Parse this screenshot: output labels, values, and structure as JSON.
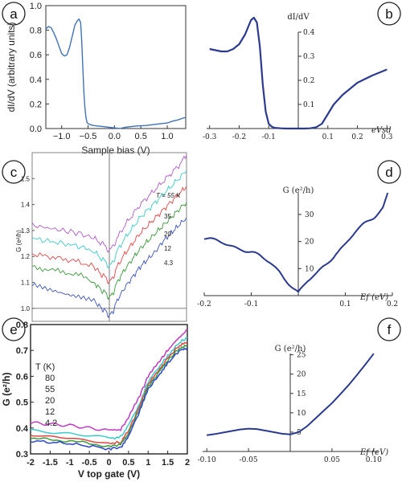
{
  "panels": {
    "a": {
      "label": "a"
    },
    "b": {
      "label": "b"
    },
    "c": {
      "label": "c"
    },
    "d": {
      "label": "d"
    },
    "e": {
      "label": "e"
    },
    "f": {
      "label": "f"
    }
  },
  "chart_data": [
    {
      "id": "a",
      "type": "line",
      "title": "",
      "xlabel": "Sample bias (V)",
      "ylabel": "dI/dV (arbitrary units)",
      "xlim": [
        -1.3,
        1.35
      ],
      "ylim": [
        0,
        1.0
      ],
      "xticks": [
        -1.0,
        -0.5,
        0.0,
        0.5,
        1.0
      ],
      "xtick_labels": [
        "−1.0",
        "−0.5",
        "0.0",
        "0.5",
        "1.0"
      ],
      "yticks": [
        0.0,
        0.2,
        0.4,
        0.6,
        0.8,
        1.0
      ],
      "ytick_labels": [
        "0.0",
        "0.2",
        "0.4",
        "0.6",
        "0.8",
        "1.0"
      ],
      "grid": false,
      "series": [
        {
          "color": "#3f73b6",
          "x": [
            -1.3,
            -1.25,
            -1.2,
            -1.15,
            -1.1,
            -1.05,
            -1.0,
            -0.95,
            -0.9,
            -0.85,
            -0.8,
            -0.75,
            -0.7,
            -0.67,
            -0.64,
            -0.62,
            -0.6,
            -0.58,
            -0.56,
            -0.54,
            -0.52,
            -0.5,
            -0.45,
            -0.4,
            -0.3,
            -0.2,
            -0.1,
            0.0,
            0.1,
            0.2,
            0.4,
            0.6,
            0.8,
            1.0,
            1.1,
            1.2,
            1.3,
            1.35
          ],
          "y": [
            0.81,
            0.83,
            0.82,
            0.78,
            0.73,
            0.67,
            0.61,
            0.59,
            0.6,
            0.66,
            0.75,
            0.84,
            0.88,
            0.89,
            0.86,
            0.72,
            0.5,
            0.3,
            0.17,
            0.09,
            0.05,
            0.04,
            0.03,
            0.025,
            0.02,
            0.015,
            0.01,
            0.005,
            0.0,
            0.01,
            0.02,
            0.025,
            0.035,
            0.045,
            0.06,
            0.07,
            0.085,
            0.09
          ]
        }
      ]
    },
    {
      "id": "b",
      "type": "line",
      "title": "",
      "xlabel": "eVsd",
      "ylabel": "dI/dV",
      "xlim": [
        -0.31,
        0.31
      ],
      "ylim": [
        0,
        0.5
      ],
      "xticks": [
        -0.3,
        -0.2,
        -0.1,
        0.1,
        0.2,
        0.3
      ],
      "xtick_labels": [
        "-0.3",
        "-0.2",
        "-0.1",
        "0.1",
        "0.2",
        "0.3"
      ],
      "yticks": [
        0.1,
        0.2,
        0.3,
        0.4
      ],
      "ytick_labels": [
        "0.1",
        "0.2",
        "0.3",
        "0.4"
      ],
      "grid": false,
      "series": [
        {
          "color": "#2b3a8f",
          "x": [
            -0.3,
            -0.28,
            -0.26,
            -0.24,
            -0.22,
            -0.2,
            -0.18,
            -0.16,
            -0.15,
            -0.14,
            -0.13,
            -0.12,
            -0.11,
            -0.1,
            -0.09,
            -0.08,
            -0.06,
            -0.04,
            -0.02,
            0.0,
            0.02,
            0.04,
            0.06,
            0.08,
            0.1,
            0.12,
            0.15,
            0.2,
            0.25,
            0.3
          ],
          "y": [
            0.33,
            0.325,
            0.32,
            0.32,
            0.33,
            0.35,
            0.39,
            0.45,
            0.46,
            0.44,
            0.34,
            0.18,
            0.07,
            0.02,
            0.008,
            0.003,
            0.001,
            0.0,
            0.0,
            0.0,
            0.0,
            0.001,
            0.005,
            0.02,
            0.06,
            0.1,
            0.14,
            0.19,
            0.22,
            0.245
          ]
        }
      ]
    },
    {
      "id": "c",
      "type": "line",
      "title": "",
      "xlabel": "",
      "ylabel": "G (e²/h)",
      "xlim": [
        -1.0,
        1.0
      ],
      "ylim": [
        0.95,
        1.6
      ],
      "yticks": [
        1.0,
        1.1,
        1.2,
        1.3,
        1.4,
        1.5
      ],
      "ytick_labels": [
        "1.0",
        "1.1",
        "1.2",
        "1.3",
        "1.4",
        "1.5"
      ],
      "grid": false,
      "legend_labels": [
        "T = 55 K",
        "35",
        "20",
        "12",
        "4.3"
      ],
      "series": [
        {
          "name": "55 K",
          "color": "#b05ac8",
          "x": [
            -1.0,
            -0.8,
            -0.6,
            -0.4,
            -0.2,
            -0.1,
            -0.05,
            0.0,
            0.05,
            0.1,
            0.2,
            0.3,
            0.4,
            0.5,
            0.6,
            0.7,
            0.8,
            0.9,
            1.0
          ],
          "y": [
            1.32,
            1.31,
            1.3,
            1.29,
            1.27,
            1.25,
            1.24,
            1.22,
            1.24,
            1.27,
            1.32,
            1.36,
            1.4,
            1.43,
            1.46,
            1.49,
            1.52,
            1.55,
            1.59
          ]
        },
        {
          "name": "35",
          "color": "#3ec9c9",
          "x": [
            -1.0,
            -0.8,
            -0.6,
            -0.4,
            -0.2,
            -0.1,
            -0.05,
            0.0,
            0.05,
            0.1,
            0.2,
            0.3,
            0.4,
            0.5,
            0.6,
            0.7,
            0.8,
            0.9,
            1.0
          ],
          "y": [
            1.27,
            1.26,
            1.25,
            1.24,
            1.22,
            1.19,
            1.18,
            1.16,
            1.18,
            1.22,
            1.27,
            1.31,
            1.35,
            1.38,
            1.41,
            1.44,
            1.47,
            1.5,
            1.53
          ]
        },
        {
          "name": "20",
          "color": "#e04646",
          "x": [
            -1.0,
            -0.8,
            -0.6,
            -0.4,
            -0.2,
            -0.1,
            -0.05,
            0.0,
            0.05,
            0.1,
            0.2,
            0.3,
            0.4,
            0.5,
            0.6,
            0.7,
            0.8,
            0.9,
            1.0
          ],
          "y": [
            1.21,
            1.2,
            1.19,
            1.18,
            1.16,
            1.13,
            1.12,
            1.1,
            1.12,
            1.16,
            1.21,
            1.25,
            1.29,
            1.32,
            1.35,
            1.38,
            1.41,
            1.44,
            1.47
          ]
        },
        {
          "name": "12",
          "color": "#3b9a3b",
          "x": [
            -1.0,
            -0.8,
            -0.6,
            -0.4,
            -0.2,
            -0.1,
            -0.05,
            0.0,
            0.05,
            0.1,
            0.2,
            0.3,
            0.4,
            0.5,
            0.6,
            0.7,
            0.8,
            0.9,
            1.0
          ],
          "y": [
            1.16,
            1.15,
            1.14,
            1.13,
            1.1,
            1.07,
            1.06,
            1.04,
            1.06,
            1.1,
            1.15,
            1.19,
            1.23,
            1.26,
            1.29,
            1.32,
            1.35,
            1.38,
            1.41
          ]
        },
        {
          "name": "4.3",
          "color": "#3d55b8",
          "x": [
            -1.0,
            -0.8,
            -0.6,
            -0.4,
            -0.2,
            -0.1,
            -0.05,
            0.0,
            0.05,
            0.1,
            0.2,
            0.3,
            0.4,
            0.5,
            0.6,
            0.7,
            0.8,
            0.9,
            1.0
          ],
          "y": [
            1.09,
            1.07,
            1.06,
            1.05,
            1.03,
            1.0,
            0.99,
            0.97,
            0.99,
            1.03,
            1.08,
            1.12,
            1.16,
            1.19,
            1.22,
            1.26,
            1.29,
            1.32,
            1.35
          ]
        }
      ]
    },
    {
      "id": "d",
      "type": "line",
      "title": "",
      "xlabel": "Ef (eV)",
      "ylabel": "G (e²/h)",
      "xlim": [
        -0.2,
        0.2
      ],
      "ylim": [
        0,
        38
      ],
      "xticks": [
        -0.2,
        -0.1,
        0.1,
        0.2
      ],
      "xtick_labels": [
        "-0.2",
        "-0.1",
        "0.1",
        "0.2"
      ],
      "yticks": [
        10,
        20,
        30
      ],
      "ytick_labels": [
        "10",
        "20",
        "30"
      ],
      "grid": false,
      "series": [
        {
          "color": "#2b3a8f",
          "x": [
            -0.2,
            -0.18,
            -0.16,
            -0.14,
            -0.12,
            -0.1,
            -0.08,
            -0.06,
            -0.04,
            -0.02,
            0.0,
            0.02,
            0.04,
            0.06,
            0.08,
            0.1,
            0.12,
            0.14,
            0.16,
            0.18,
            0.19
          ],
          "y": [
            21,
            20,
            19.5,
            18.5,
            17.5,
            16,
            14,
            12,
            9,
            5,
            1,
            5,
            8,
            12,
            16,
            19,
            23,
            26,
            29,
            33,
            38
          ]
        }
      ]
    },
    {
      "id": "e",
      "type": "line",
      "title": "",
      "xlabel": "V top gate (V)",
      "ylabel": "G (e²/h)",
      "xlim": [
        -2,
        2
      ],
      "ylim": [
        0.3,
        0.8
      ],
      "xticks": [
        -2,
        -1.5,
        -1,
        -0.5,
        0,
        0.5,
        1,
        1.5,
        2
      ],
      "xtick_labels": [
        "-2",
        "-1.5",
        "-1",
        "-0.5",
        "0",
        "0.5",
        "1",
        "1.5",
        "2"
      ],
      "yticks": [
        0.3,
        0.4,
        0.5,
        0.6,
        0.7,
        0.8
      ],
      "ytick_labels": [
        "0.3",
        "0.4",
        "0.5",
        "0.6",
        "0.7",
        "0.8"
      ],
      "grid": false,
      "legend_labels": [
        "T (K)",
        "80",
        "55",
        "20",
        "12",
        "4.2"
      ],
      "series": [
        {
          "name": "80",
          "color": "#c03cc0",
          "x": [
            -2.0,
            -1.5,
            -1.0,
            -0.5,
            0.0,
            0.3,
            0.5,
            0.8,
            1.0,
            1.3,
            1.5,
            1.8,
            2.0
          ],
          "y": [
            0.42,
            0.415,
            0.41,
            0.4,
            0.39,
            0.395,
            0.44,
            0.53,
            0.6,
            0.66,
            0.7,
            0.75,
            0.78
          ]
        },
        {
          "name": "55",
          "color": "#3ec9c9",
          "x": [
            -2.0,
            -1.5,
            -1.0,
            -0.5,
            0.0,
            0.3,
            0.5,
            0.8,
            1.0,
            1.3,
            1.5,
            1.8,
            2.0
          ],
          "y": [
            0.39,
            0.385,
            0.38,
            0.37,
            0.36,
            0.365,
            0.41,
            0.5,
            0.58,
            0.64,
            0.68,
            0.73,
            0.75
          ]
        },
        {
          "name": "20",
          "color": "#e04646",
          "x": [
            -2.0,
            -1.5,
            -1.0,
            -0.5,
            0.0,
            0.3,
            0.5,
            0.8,
            1.0,
            1.3,
            1.5,
            1.8,
            2.0
          ],
          "y": [
            0.37,
            0.365,
            0.36,
            0.35,
            0.34,
            0.345,
            0.39,
            0.49,
            0.57,
            0.63,
            0.67,
            0.72,
            0.73
          ]
        },
        {
          "name": "12",
          "color": "#3b9a3b",
          "x": [
            -2.0,
            -1.5,
            -1.0,
            -0.5,
            0.0,
            0.3,
            0.5,
            0.8,
            1.0,
            1.3,
            1.5,
            1.8,
            2.0
          ],
          "y": [
            0.36,
            0.355,
            0.35,
            0.34,
            0.33,
            0.335,
            0.38,
            0.48,
            0.56,
            0.62,
            0.66,
            0.71,
            0.72
          ]
        },
        {
          "name": "4.2",
          "color": "#2f45c8",
          "x": [
            -2.0,
            -1.5,
            -1.0,
            -0.5,
            0.0,
            0.3,
            0.5,
            0.8,
            1.0,
            1.3,
            1.5,
            1.8,
            2.0
          ],
          "y": [
            0.35,
            0.345,
            0.34,
            0.33,
            0.32,
            0.325,
            0.37,
            0.47,
            0.55,
            0.61,
            0.65,
            0.7,
            0.71
          ]
        }
      ]
    },
    {
      "id": "f",
      "type": "line",
      "title": "",
      "xlabel": "Ef (eV)",
      "ylabel": "G (e²/h)",
      "xlim": [
        -0.105,
        0.105
      ],
      "ylim": [
        0,
        27
      ],
      "xticks": [
        -0.1,
        -0.05,
        0.05,
        0.1
      ],
      "xtick_labels": [
        "-0.10",
        "-0.05",
        "0.05",
        "0.10"
      ],
      "yticks": [
        5,
        10,
        15,
        20,
        25
      ],
      "ytick_labels": [
        "5",
        "10",
        "15",
        "20",
        "25"
      ],
      "grid": false,
      "series": [
        {
          "color": "#2b3a8f",
          "x": [
            -0.1,
            -0.09,
            -0.08,
            -0.07,
            -0.06,
            -0.05,
            -0.04,
            -0.03,
            -0.02,
            -0.01,
            0.0,
            0.01,
            0.02,
            0.03,
            0.04,
            0.05,
            0.06,
            0.07,
            0.08,
            0.09,
            0.1
          ],
          "y": [
            4.2,
            4.5,
            4.9,
            5.3,
            5.7,
            5.9,
            5.8,
            5.4,
            5.0,
            4.6,
            4.4,
            5.0,
            6.5,
            8.5,
            10.5,
            12.5,
            14.8,
            17.2,
            19.8,
            22.5,
            25.3
          ]
        }
      ]
    }
  ]
}
